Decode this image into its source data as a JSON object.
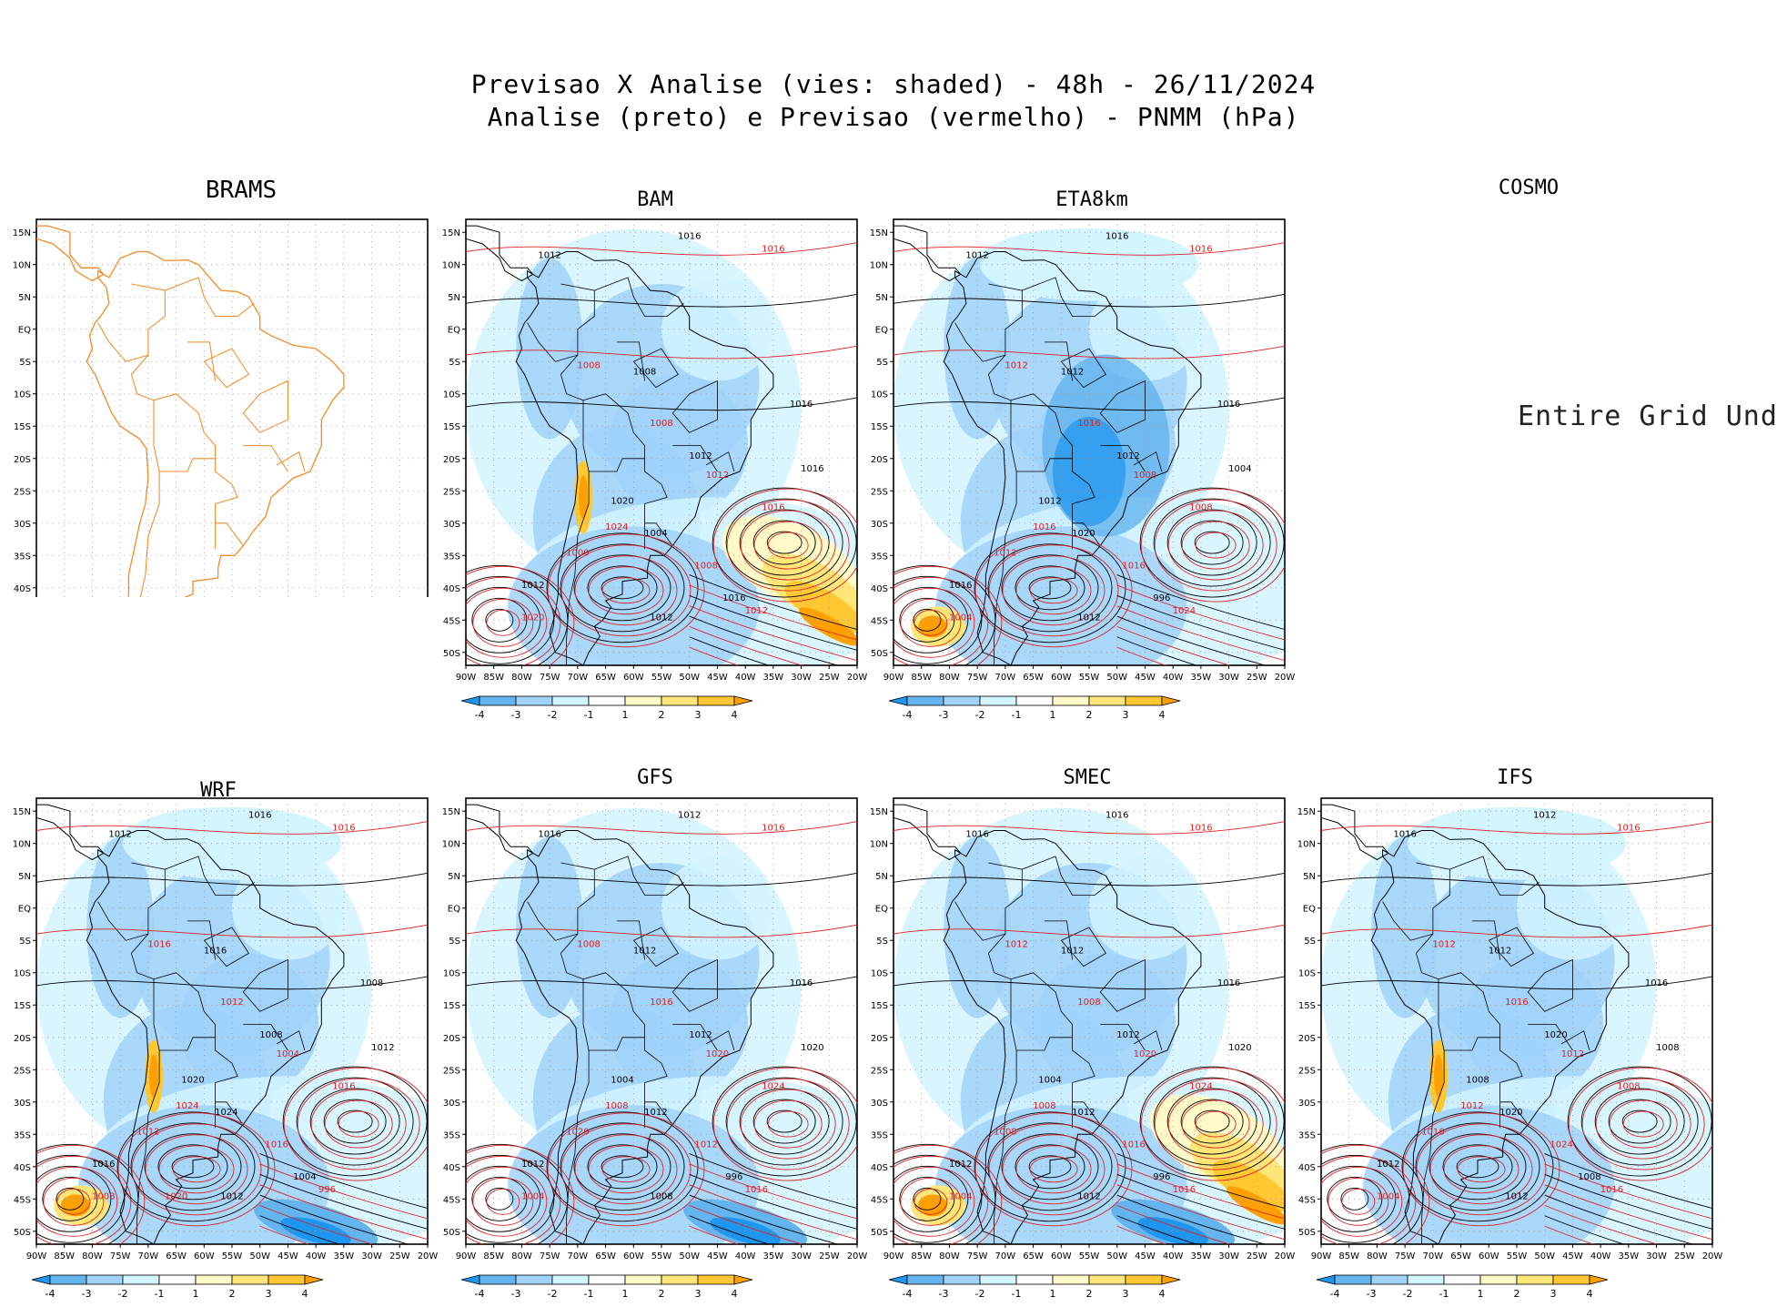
{
  "header": {
    "line1": "Previsao X Analise (vies: shaded) - 48h - 26/11/2024",
    "line2": "Analise (preto) e Previsao (vermelho) - PNMM (hPa)"
  },
  "colors": {
    "neg4": "#1e96f0",
    "neg3": "#64b4f0",
    "neg2": "#a0d2fa",
    "neg1": "#d2f5ff",
    "zero": "#ffffff",
    "pos1": "#fffac8",
    "pos2": "#ffe678",
    "pos3": "#ffc832",
    "pos4": "#ffa000",
    "analysis": "#000000",
    "forecast": "#e02020",
    "coast": "#f08c28"
  },
  "map_axes": {
    "lat_labels": [
      "15N",
      "10N",
      "5N",
      "EQ",
      "5S",
      "10S",
      "15S",
      "20S",
      "25S",
      "30S",
      "35S",
      "40S",
      "45S",
      "50S"
    ],
    "lon_labels": [
      "90W",
      "85W",
      "80W",
      "75W",
      "70W",
      "65W",
      "60W",
      "55W",
      "50W",
      "45W",
      "40W",
      "35W",
      "30W",
      "25W",
      "20W"
    ]
  },
  "colorbar": {
    "tick_labels": [
      "-4",
      "-3",
      "-2",
      "-1",
      "1",
      "2",
      "3",
      "4"
    ]
  },
  "panels": [
    {
      "id": "brams",
      "name": "BRAMS",
      "status": "map-only"
    },
    {
      "id": "bam",
      "name": "BAM",
      "isobar_labels": [
        "1016",
        "1016",
        "1012",
        "1008",
        "1008",
        "1008",
        "1012",
        "1012",
        "1016",
        "1016",
        "1020",
        "1024",
        "1004",
        "1008",
        "1012",
        "1020",
        "1016",
        "1012",
        "1012",
        "1000",
        "1016"
      ]
    },
    {
      "id": "eta8km",
      "name": "ETA8km",
      "isobar_labels": [
        "1016",
        "1016",
        "1012",
        "1012",
        "1012",
        "1016",
        "1012",
        "1008",
        "1004",
        "1008",
        "1012",
        "1016",
        "1020",
        "1016",
        "1012",
        "1004",
        "996",
        "1024",
        "1016",
        "1012",
        "1016"
      ]
    },
    {
      "id": "cosmo",
      "name": "COSMO",
      "status": "Entire Grid Und"
    },
    {
      "id": "wrf",
      "name": "WRF",
      "isobar_labels": [
        "1016",
        "1016",
        "1012",
        "1016",
        "1016",
        "1012",
        "1008",
        "1004",
        "1012",
        "1016",
        "1020",
        "1024",
        "1024",
        "1016",
        "1012",
        "1008",
        "1004",
        "996",
        "1016",
        "1012",
        "1008",
        "1020"
      ]
    },
    {
      "id": "gfs",
      "name": "GFS",
      "isobar_labels": [
        "1012",
        "1016",
        "1016",
        "1008",
        "1012",
        "1016",
        "1012",
        "1020",
        "1020",
        "1024",
        "1004",
        "1008",
        "1012",
        "1012",
        "1008",
        "1004",
        "996",
        "1016",
        "1012",
        "1020",
        "1016"
      ]
    },
    {
      "id": "smec",
      "name": "SMEC",
      "isobar_labels": [
        "1016",
        "1016",
        "1016",
        "1012",
        "1012",
        "1008",
        "1012",
        "1020",
        "1020",
        "1024",
        "1004",
        "1008",
        "1012",
        "1016",
        "1012",
        "1004",
        "996",
        "1016",
        "1012",
        "1008",
        "1016"
      ]
    },
    {
      "id": "ifs",
      "name": "IFS",
      "isobar_labels": [
        "1012",
        "1016",
        "1016",
        "1012",
        "1012",
        "1016",
        "1020",
        "1012",
        "1008",
        "1008",
        "1008",
        "1012",
        "1020",
        "1024",
        "1012",
        "1004",
        "1008",
        "1016",
        "1012",
        "1016",
        "1016"
      ]
    }
  ],
  "chart_data": {
    "type": "heatmap",
    "title": "Previsao X Analise (vies: shaded) - 48h - 26/11/2024",
    "subtitle": "Analise (preto) e Previsao (vermelho) - PNMM (hPa)",
    "variable": "PNMM (hPa)",
    "lon_range": [
      -90,
      -20
    ],
    "lat_range": [
      -52,
      17
    ],
    "bias_levels": [
      -4,
      -3,
      -2,
      -1,
      1,
      2,
      3,
      4
    ],
    "models": [
      "BRAMS",
      "BAM",
      "ETA8km",
      "COSMO",
      "WRF",
      "GFS",
      "SMEC",
      "IFS"
    ]
  }
}
